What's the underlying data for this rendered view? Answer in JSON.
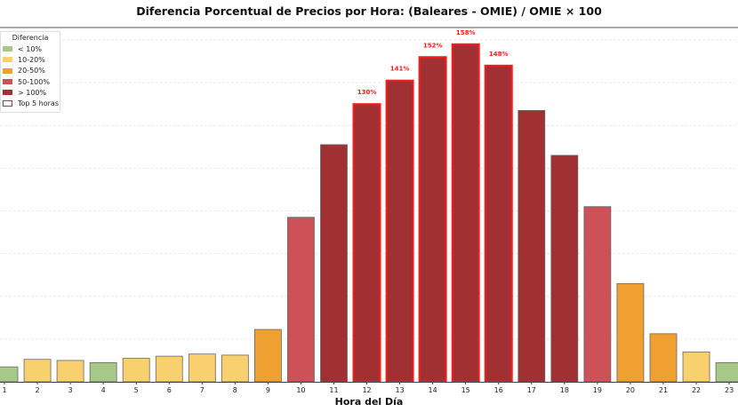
{
  "chart_data": {
    "type": "bar",
    "title": "Diferencia Porcentual de Precios por Hora: (Baleares - OMIE) / OMIE × 100",
    "xlabel": "Hora del Día",
    "ylabel": "",
    "categories": [
      "1",
      "2",
      "3",
      "4",
      "5",
      "6",
      "7",
      "8",
      "9",
      "10",
      "11",
      "12",
      "13",
      "14",
      "15",
      "16",
      "17",
      "18",
      "19",
      "20",
      "21",
      "22",
      "23"
    ],
    "values": [
      7,
      10.5,
      10,
      9,
      11,
      12,
      13,
      12.5,
      24.5,
      77,
      111,
      130,
      141,
      152,
      158,
      148,
      127,
      106,
      82,
      46,
      22.5,
      14,
      9
    ],
    "ylim": [
      0,
      160
    ],
    "grid": true,
    "data_labels": {
      "12": "130%",
      "13": "141%",
      "14": "152%",
      "15": "158%",
      "16": "148%"
    },
    "top5": [
      "12",
      "13",
      "14",
      "15",
      "16"
    ],
    "legend": {
      "title": "Diferencia",
      "placement": "top-left",
      "items": [
        {
          "label": "< 10%",
          "color": "#a6c98a"
        },
        {
          "label": "10-20%",
          "color": "#f9d06e"
        },
        {
          "label": "20-50%",
          "color": "#f0a030"
        },
        {
          "label": "50-100%",
          "color": "#cc5258"
        },
        {
          "label": "> 100%",
          "color": "#a03032"
        },
        {
          "label": "Top 5 horas",
          "color": "#ff1a1a",
          "outline": true
        }
      ]
    },
    "highlight_color": "#ff1a1a"
  }
}
